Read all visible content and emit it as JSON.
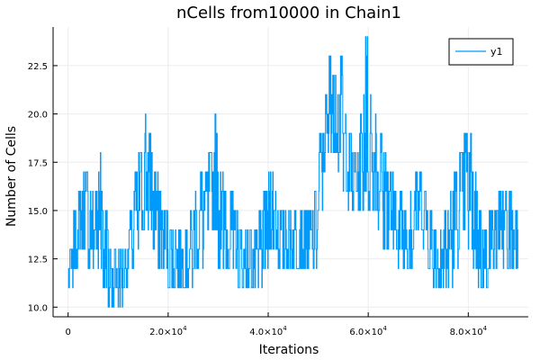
{
  "chart_data": {
    "type": "line",
    "title": "nCells from10000 in Chain1",
    "xlabel": "Iterations",
    "ylabel": "Number of Cells",
    "xlim": [
      -3000,
      92000
    ],
    "ylim": [
      9.5,
      24.5
    ],
    "grid": true,
    "legend_position": "top-right",
    "line_color": "#009AFA",
    "x_ticks": [
      {
        "value": 0,
        "label": "0",
        "sup": ""
      },
      {
        "value": 20000,
        "label": "2.0×10",
        "sup": "4"
      },
      {
        "value": 40000,
        "label": "4.0×10",
        "sup": "4"
      },
      {
        "value": 60000,
        "label": "6.0×10",
        "sup": "4"
      },
      {
        "value": 80000,
        "label": "8.0×10",
        "sup": "4"
      }
    ],
    "y_ticks": [
      {
        "value": 10,
        "label": "10.0"
      },
      {
        "value": 12.5,
        "label": "12.5"
      },
      {
        "value": 15,
        "label": "15.0"
      },
      {
        "value": 17.5,
        "label": "17.5"
      },
      {
        "value": 20,
        "label": "20.0"
      },
      {
        "value": 22.5,
        "label": "22.5"
      }
    ],
    "series": [
      {
        "name": "y1",
        "x": [
          0,
          1000,
          2000,
          3000,
          4000,
          5000,
          6000,
          7000,
          8000,
          9000,
          10000,
          11000,
          12000,
          13000,
          14000,
          15000,
          16000,
          17000,
          18000,
          19000,
          20000,
          21000,
          22000,
          23000,
          24000,
          25000,
          26000,
          27000,
          28000,
          29000,
          30000,
          31000,
          32000,
          33000,
          34000,
          35000,
          36000,
          37000,
          38000,
          39000,
          40000,
          41000,
          42000,
          43000,
          44000,
          45000,
          46000,
          47000,
          48000,
          49000,
          50000,
          51000,
          52000,
          53000,
          54000,
          55000,
          56000,
          57000,
          58000,
          59000,
          60000,
          61000,
          62000,
          63000,
          64000,
          65000,
          66000,
          67000,
          68000,
          69000,
          70000,
          71000,
          72000,
          73000,
          74000,
          75000,
          76000,
          77000,
          78000,
          79000,
          80000,
          81000,
          82000,
          83000,
          84000,
          85000,
          86000,
          87000,
          88000,
          89000
        ],
        "low": [
          11,
          12,
          13,
          13,
          12,
          12,
          12,
          11,
          10,
          10,
          10,
          11,
          12,
          12,
          13,
          14,
          14,
          13,
          12,
          12,
          11,
          11,
          11,
          11,
          11,
          12,
          12,
          13,
          14,
          14,
          12,
          12,
          12,
          12,
          11,
          11,
          11,
          11,
          11,
          12,
          13,
          13,
          12,
          12,
          12,
          12,
          12,
          12,
          12,
          12,
          15,
          17,
          18,
          18,
          17,
          16,
          15,
          15,
          15,
          15,
          15,
          15,
          14,
          13,
          13,
          13,
          12,
          12,
          12,
          13,
          14,
          13,
          12,
          11,
          11,
          11,
          11,
          12,
          13,
          14,
          13,
          12,
          11,
          11,
          12,
          12,
          13,
          12,
          12,
          12
        ],
        "high": [
          13,
          15,
          16,
          17,
          16,
          16,
          18,
          15,
          13,
          13,
          13,
          13,
          15,
          17,
          18,
          20,
          19,
          17,
          16,
          15,
          14,
          14,
          14,
          14,
          15,
          16,
          17,
          17,
          18,
          20,
          17,
          16,
          16,
          15,
          14,
          14,
          14,
          14,
          15,
          16,
          17,
          16,
          15,
          15,
          15,
          15,
          15,
          15,
          15,
          16,
          19,
          21,
          23,
          22,
          23,
          20,
          19,
          18,
          20,
          24,
          21,
          20,
          19,
          18,
          17,
          16,
          16,
          15,
          16,
          17,
          17,
          16,
          15,
          14,
          14,
          15,
          16,
          17,
          18,
          19,
          19,
          17,
          15,
          14,
          15,
          15,
          16,
          16,
          16,
          15
        ]
      }
    ]
  }
}
